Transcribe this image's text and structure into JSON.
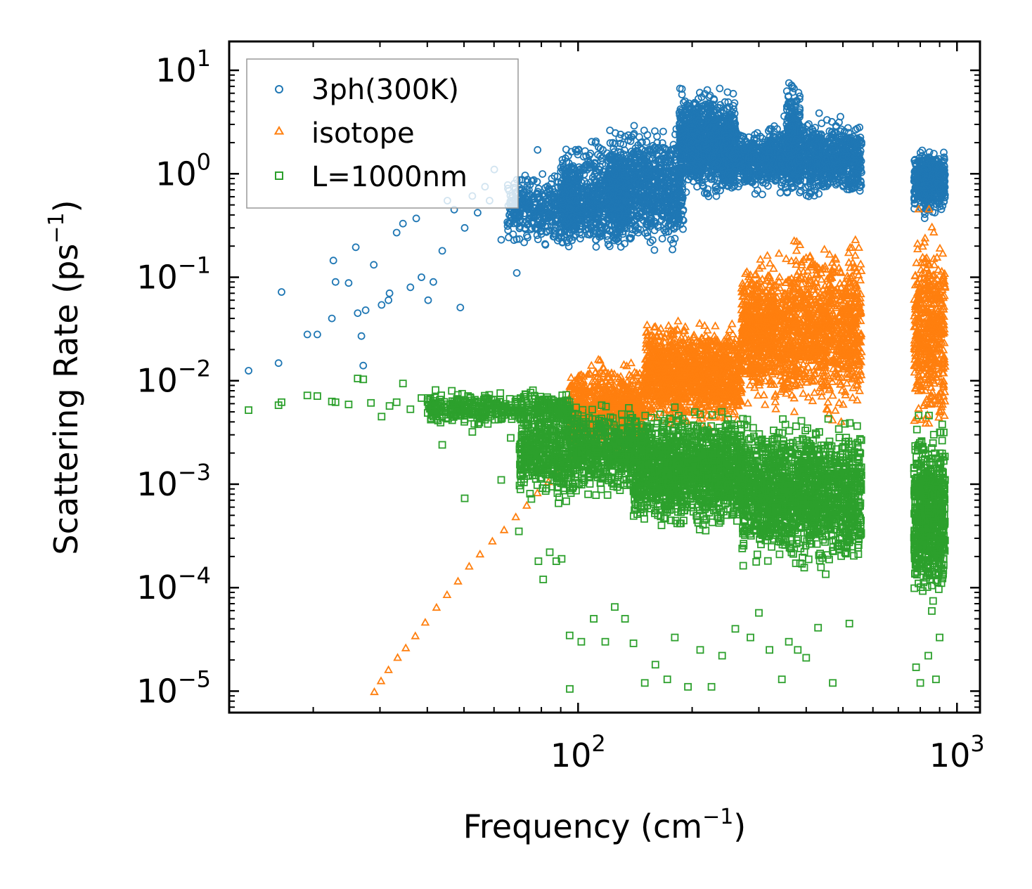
{
  "chart_data": {
    "type": "scatter",
    "xscale": "log",
    "yscale": "log",
    "xlim": [
      12,
      1150
    ],
    "ylim": [
      6.2e-06,
      19
    ],
    "xlabel": "Frequency (cm",
    "xlabel_sup": "−1",
    "xlabel_end": ")",
    "ylabel": "Scattering Rate (ps",
    "ylabel_sup": "−1",
    "ylabel_end": ")",
    "xticks": [
      {
        "value": 100,
        "base": "10",
        "exp": "2"
      },
      {
        "value": 1000,
        "base": "10",
        "exp": "3"
      }
    ],
    "yticks": [
      {
        "value": 1e-05,
        "base": "10",
        "exp": "−5"
      },
      {
        "value": 0.0001,
        "base": "10",
        "exp": "−4"
      },
      {
        "value": 0.001,
        "base": "10",
        "exp": "−3"
      },
      {
        "value": 0.01,
        "base": "10",
        "exp": "−2"
      },
      {
        "value": 0.1,
        "base": "10",
        "exp": "−1"
      },
      {
        "value": 1,
        "base": "10",
        "exp": "0"
      },
      {
        "value": 10,
        "base": "10",
        "exp": "1"
      }
    ],
    "legend_position": "top-left",
    "series": [
      {
        "name": "3ph(300K)",
        "marker": "circle",
        "color": "#1f77b4",
        "x": [
          13.5,
          16.2,
          16.5,
          19.3,
          20.5,
          22.4,
          22.6,
          22.9,
          24.8,
          25.9,
          26.2,
          26.8,
          27.1,
          27.5,
          28.9,
          30.3,
          31.6,
          31.8,
          33.2,
          34.5,
          36.1,
          37.4,
          38.6,
          40.2,
          41.5,
          43.8,
          45.2,
          47.1,
          48.9,
          50.2,
          52.6,
          54.3,
          56.8,
          58.4,
          60.1,
          62.7,
          65.3,
          68.9,
          72.4,
          75.8,
          78.2,
          80.5,
          83.1,
          86.7,
          90.2
        ],
        "y": [
          0.0125,
          0.0148,
          0.072,
          0.028,
          0.028,
          0.04,
          0.145,
          0.09,
          0.088,
          0.195,
          0.045,
          0.027,
          0.014,
          0.048,
          0.132,
          0.054,
          0.06,
          0.07,
          0.27,
          0.33,
          0.08,
          0.37,
          0.1,
          0.06,
          0.09,
          0.18,
          0.55,
          0.45,
          0.051,
          0.3,
          0.61,
          0.42,
          0.75,
          0.55,
          1.1,
          0.23,
          0.72,
          0.11,
          0.52,
          0.85,
          1.7,
          0.63,
          0.31,
          0.95,
          0.42
        ],
        "clusters": [
          {
            "x0": 65,
            "x1": 100,
            "ylow": 0.18,
            "yhigh": 1.2,
            "n": 420
          },
          {
            "x0": 90,
            "x1": 135,
            "ylow": 0.13,
            "yhigh": 2.5,
            "n": 700
          },
          {
            "x0": 120,
            "x1": 190,
            "ylow": 0.15,
            "yhigh": 3.6,
            "n": 900
          },
          {
            "x0": 185,
            "x1": 260,
            "ylow": 0.5,
            "yhigh": 8.0,
            "n": 1100
          },
          {
            "x0": 240,
            "x1": 340,
            "ylow": 0.6,
            "yhigh": 3.2,
            "n": 600
          },
          {
            "x0": 340,
            "x1": 560,
            "ylow": 0.5,
            "yhigh": 4.0,
            "n": 900
          },
          {
            "x0": 355,
            "x1": 385,
            "ylow": 0.8,
            "yhigh": 9.5,
            "n": 160
          },
          {
            "x0": 770,
            "x1": 930,
            "ylow": 0.35,
            "yhigh": 2.0,
            "n": 450
          }
        ]
      },
      {
        "name": "isotope",
        "marker": "triangle",
        "color": "#ff7f0e",
        "x": [
          29,
          30.2,
          31.6,
          33.4,
          35.1,
          37.2,
          39.5,
          42.3,
          45.1,
          48.2,
          51.6,
          55.1,
          59.4,
          63.8,
          68.5,
          73.2,
          78.1,
          83.5,
          89.2,
          95.0
        ],
        "y": [
          9.8e-06,
          1.25e-05,
          1.6e-05,
          2.1e-05,
          2.6e-05,
          3.4e-05,
          4.6e-05,
          6.4e-05,
          8.5e-05,
          0.000115,
          0.00016,
          0.00021,
          0.00028,
          0.00036,
          0.00048,
          0.00062,
          0.00082,
          0.00105,
          0.0014,
          0.0019
        ],
        "clusters": [
          {
            "x0": 95,
            "x1": 150,
            "ylow": 0.0018,
            "yhigh": 0.018,
            "n": 700
          },
          {
            "x0": 150,
            "x1": 270,
            "ylow": 0.003,
            "yhigh": 0.045,
            "n": 1300
          },
          {
            "x0": 270,
            "x1": 370,
            "ylow": 0.004,
            "yhigh": 0.22,
            "n": 800
          },
          {
            "x0": 370,
            "x1": 560,
            "ylow": 0.0035,
            "yhigh": 0.3,
            "n": 900
          },
          {
            "x0": 770,
            "x1": 930,
            "ylow": 0.002,
            "yhigh": 0.5,
            "n": 500
          }
        ]
      },
      {
        "name": "L=1000nm",
        "marker": "square",
        "color": "#2ca02c",
        "x": [
          13.5,
          16.2,
          16.5,
          19.3,
          20.5,
          22.4,
          22.9,
          24.8,
          26.2,
          27.1,
          28.4,
          30.3,
          31.8,
          33.2,
          34.5,
          36.1,
          38.6,
          41.5,
          43.8,
          47.1,
          50.2,
          52.6,
          56.8,
          60.1,
          62.7,
          66.4,
          69.8,
          72.1,
          75.3,
          78.6,
          80.9,
          84.2,
          87.6,
          90.5,
          95.1
        ],
        "y": [
          0.0052,
          0.0058,
          0.0062,
          0.0072,
          0.0071,
          0.0063,
          0.0062,
          0.0059,
          0.0105,
          0.0103,
          0.0061,
          0.0045,
          0.0057,
          0.0062,
          0.0094,
          0.0053,
          0.0068,
          0.0045,
          0.0024,
          0.0063,
          0.00073,
          0.0032,
          0.0042,
          0.0059,
          0.0011,
          0.0028,
          0.00035,
          0.0016,
          0.00072,
          0.00018,
          0.00012,
          0.00022,
          0.00018,
          0.00019,
          1.05e-05
        ],
        "clusters": [
          {
            "x0": 40,
            "x1": 95,
            "ylow": 0.0035,
            "yhigh": 0.0085,
            "n": 400
          },
          {
            "x0": 70,
            "x1": 140,
            "ylow": 0.0006,
            "yhigh": 0.0075,
            "n": 900
          },
          {
            "x0": 140,
            "x1": 270,
            "ylow": 0.0003,
            "yhigh": 0.0065,
            "n": 1400
          },
          {
            "x0": 270,
            "x1": 560,
            "ylow": 0.00012,
            "yhigh": 0.0055,
            "n": 1500
          },
          {
            "x0": 770,
            "x1": 930,
            "ylow": 5e-05,
            "yhigh": 0.005,
            "n": 700
          }
        ],
        "outliers_x": [
          95,
          102,
          110,
          118,
          125,
          133,
          140,
          150,
          160,
          172,
          180,
          195,
          210,
          225,
          240,
          260,
          285,
          300,
          320,
          345,
          360,
          380,
          400,
          430,
          470,
          520,
          780,
          800,
          840,
          880,
          900
        ],
        "outliers_y": [
          3.45e-05,
          3e-05,
          5e-05,
          3e-05,
          6.5e-05,
          5e-05,
          2.9e-05,
          1.2e-05,
          1.8e-05,
          1.3e-05,
          3.3e-05,
          1.1e-05,
          2.5e-05,
          1.1e-05,
          2.2e-05,
          4e-05,
          3.3e-05,
          5.7e-05,
          2.5e-05,
          1.3e-05,
          3e-05,
          2.5e-05,
          2.1e-05,
          4.1e-05,
          1.2e-05,
          4.5e-05,
          1.7e-05,
          1.2e-05,
          2.2e-05,
          1.3e-05,
          3.3e-05
        ]
      }
    ]
  }
}
